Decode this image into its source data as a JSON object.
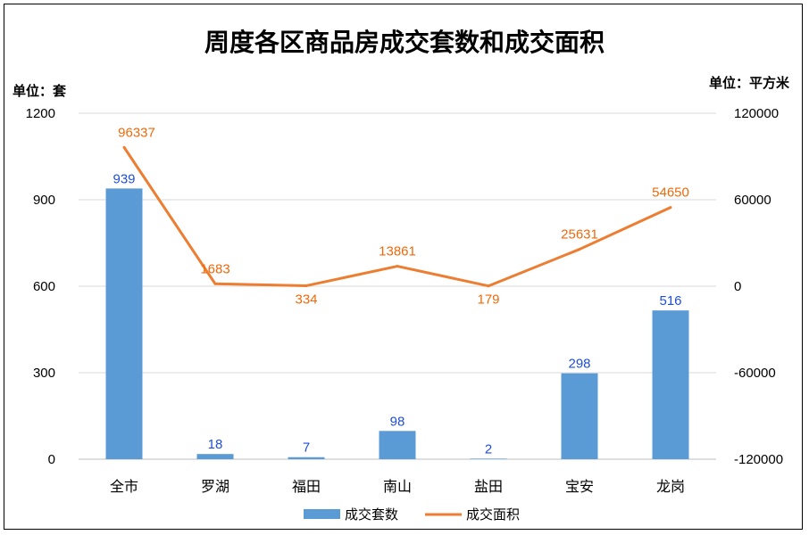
{
  "chart_data": {
    "type": "bar+line",
    "title": "周度各区商品房成交套数和成交面积",
    "left_unit": "单位：套",
    "right_unit": "单位：平方米",
    "categories": [
      "全市",
      "罗湖",
      "福田",
      "南山",
      "盐田",
      "宝安",
      "龙岗"
    ],
    "series": [
      {
        "name": "成交套数",
        "type": "bar",
        "axis": "left",
        "values": [
          939,
          18,
          7,
          98,
          2,
          298,
          516
        ],
        "color": "#5b9bd5",
        "label_color": "#1f4fd6"
      },
      {
        "name": "成交面积",
        "type": "line",
        "axis": "right",
        "values": [
          96337,
          1683,
          334,
          13861,
          179,
          25631,
          54650
        ],
        "color": "#ed7d31",
        "label_color": "#ed6a0c"
      }
    ],
    "left_axis": {
      "ticks": [
        "0",
        "300",
        "600",
        "900",
        "1200"
      ],
      "min": 0,
      "max": 1200
    },
    "right_axis": {
      "ticks": [
        "-120000",
        "-60000",
        "0",
        "60000",
        "120000"
      ],
      "min": -120000,
      "max": 120000
    },
    "grid": true,
    "legend_position": "bottom"
  }
}
